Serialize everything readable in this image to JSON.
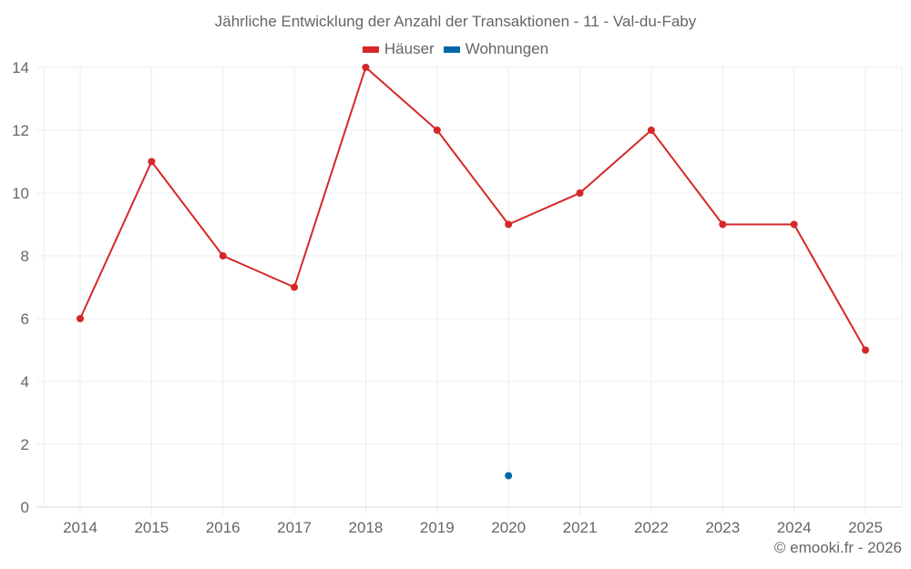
{
  "chart_data": {
    "type": "line",
    "title": "Jährliche Entwicklung der Anzahl der Transaktionen - 11 - Val-du-Faby",
    "xlabel": "",
    "ylabel": "",
    "categories": [
      "2014",
      "2015",
      "2016",
      "2017",
      "2018",
      "2019",
      "2020",
      "2021",
      "2022",
      "2023",
      "2024",
      "2025"
    ],
    "y_ticks": [
      0,
      2,
      4,
      6,
      8,
      10,
      12,
      14
    ],
    "ylim": [
      0,
      14
    ],
    "grid": true,
    "legend_position": "top",
    "series": [
      {
        "name": "Häuser",
        "color": "#d62728",
        "values": [
          6,
          11,
          8,
          7,
          14,
          12,
          9,
          10,
          12,
          9,
          9,
          5
        ]
      },
      {
        "name": "Wohnungen",
        "color": "#0068a5",
        "values": [
          null,
          null,
          null,
          null,
          null,
          null,
          1,
          null,
          null,
          null,
          null,
          null
        ]
      }
    ]
  },
  "legend": {
    "items": [
      {
        "label": "Häuser",
        "color": "#d62728"
      },
      {
        "label": "Wohnungen",
        "color": "#0068a5"
      }
    ]
  },
  "footer": {
    "credit": "© emooki.fr - 2026"
  }
}
